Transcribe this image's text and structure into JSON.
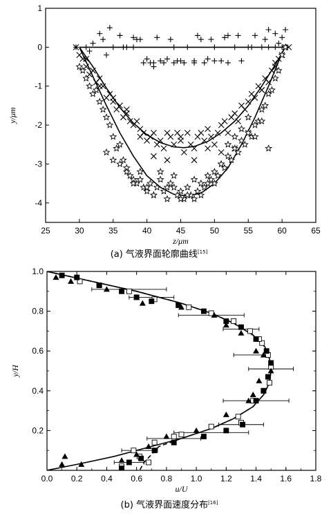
{
  "chart_data": [
    {
      "type": "scatter",
      "caption": "(a) 气液界面轮廓曲线",
      "caption_ref": "[15]",
      "xlabel": "z/μm",
      "ylabel": "y/μm",
      "xlim": [
        25,
        65
      ],
      "ylim": [
        -4.5,
        1
      ],
      "xticks": [
        25,
        30,
        35,
        40,
        45,
        50,
        55,
        60,
        65
      ],
      "yticks": [
        -4,
        -3,
        -2,
        -1,
        0,
        1
      ],
      "series": [
        {
          "marker": "plus",
          "x": [
            29.5,
            31,
            32,
            33,
            34.5,
            35,
            36,
            37,
            38,
            39,
            40,
            40.5,
            41,
            42,
            43,
            43.5,
            44,
            45,
            46,
            47,
            48,
            49,
            50,
            51,
            52,
            53,
            54,
            55,
            56,
            57,
            58,
            59,
            60,
            60.5,
            31.5,
            33.5,
            36.5,
            38.5,
            41.5,
            44.5,
            47.5,
            49.5,
            51.5,
            53.5,
            55.5,
            57.5,
            59.5,
            39.5,
            41,
            42.5,
            44,
            45.5,
            47,
            48.5,
            50,
            52,
            34,
            36,
            38,
            58,
            59,
            60
          ],
          "y": [
            0.0,
            0.0,
            0.1,
            0.35,
            0.5,
            0.0,
            0.3,
            0.0,
            0.0,
            0.2,
            -0.3,
            -0.4,
            -0.5,
            -0.35,
            -0.3,
            0.2,
            0.0,
            -0.35,
            0.0,
            -0.35,
            0.2,
            -0.3,
            0.0,
            -0.35,
            0.3,
            0.0,
            -0.35,
            0.0,
            0.3,
            0.0,
            0.45,
            0.35,
            0.0,
            0.45,
            -0.1,
            0.2,
            0.0,
            0.2,
            0.25,
            -0.35,
            0.3,
            0.2,
            0.25,
            0.3,
            0.0,
            0.2,
            0.1,
            -0.4,
            -0.4,
            -0.4,
            -0.4,
            -0.4,
            -0.4,
            -0.4,
            -0.35,
            -0.4,
            -0.2,
            0.3,
            0.25,
            0.0,
            0.0,
            0.25
          ]
        },
        {
          "marker": "cross",
          "x": [
            29.5,
            30,
            30.5,
            31,
            31.5,
            32,
            32.5,
            33,
            33.5,
            34,
            34.5,
            35,
            35.5,
            36,
            36.5,
            37,
            37.5,
            38,
            38.5,
            39,
            39.5,
            40,
            40.5,
            41,
            41.5,
            42,
            42.5,
            43,
            43.5,
            44,
            44.5,
            45,
            45.5,
            46,
            46.5,
            47,
            47.5,
            48,
            48.5,
            49,
            49.5,
            50,
            50.5,
            51,
            51.5,
            52,
            52.5,
            53,
            53.5,
            54,
            54.5,
            55,
            55.5,
            56,
            56.5,
            57,
            57.5,
            58,
            58.5,
            59,
            59.5,
            60,
            60.5,
            61,
            31,
            33,
            35,
            37,
            39,
            41,
            43,
            45,
            47,
            49,
            51,
            53,
            55,
            57,
            59
          ],
          "y": [
            0.0,
            -0.2,
            -0.3,
            -0.5,
            -0.7,
            -0.6,
            -0.9,
            -1.0,
            -1.0,
            -1.3,
            -1.2,
            -1.4,
            -1.6,
            -1.5,
            -1.8,
            -1.7,
            -1.9,
            -2.0,
            -1.9,
            -2.1,
            -2.2,
            -2.4,
            -2.3,
            -2.2,
            -2.5,
            -2.4,
            -2.6,
            -2.2,
            -2.3,
            -2.5,
            -2.2,
            -2.3,
            -2.7,
            -2.2,
            -2.5,
            -2.6,
            -2.3,
            -2.2,
            -2.4,
            -2.1,
            -2.3,
            -2.5,
            -2.2,
            -2.0,
            -1.9,
            -2.2,
            -1.8,
            -1.7,
            -1.9,
            -1.5,
            -1.6,
            -1.4,
            -1.2,
            -1.3,
            -1.0,
            -1.1,
            -0.8,
            -0.9,
            -0.6,
            -0.5,
            -0.3,
            -0.2,
            0.0,
            0.0,
            -0.3,
            -0.8,
            -1.3,
            -1.6,
            -2.3,
            -2.8,
            -2.9,
            -2.4,
            -2.9,
            -2.6,
            -2.7,
            -2.6,
            -2.2,
            -1.1,
            -0.4
          ]
        },
        {
          "marker": "star",
          "x": [
            30,
            30.5,
            31,
            31.5,
            32,
            32.5,
            33,
            33.5,
            34,
            34.5,
            35,
            35.5,
            36,
            36.5,
            37,
            37.5,
            38,
            38.5,
            39,
            39.5,
            40,
            40.5,
            41,
            41.5,
            42,
            42.5,
            43,
            43.5,
            44,
            44.5,
            45,
            45.5,
            46,
            46.5,
            47,
            47.5,
            48,
            48.5,
            49,
            49.5,
            50,
            50.5,
            51,
            51.5,
            52,
            52.5,
            53,
            53.5,
            54,
            54.5,
            55,
            55.5,
            56,
            56.5,
            57,
            57.5,
            58,
            58.5,
            59,
            59.5,
            60,
            60.5,
            34,
            35,
            36,
            37,
            38,
            39,
            40,
            41,
            42,
            43,
            44,
            45,
            46,
            47,
            48,
            49,
            50,
            51,
            52,
            53,
            54,
            55,
            56,
            57,
            58
          ],
          "y": [
            -0.5,
            -0.6,
            -0.8,
            -1.0,
            -1.2,
            -1.1,
            -1.4,
            -1.6,
            -1.8,
            -2.0,
            -2.3,
            -2.6,
            -2.5,
            -2.9,
            -3.1,
            -3.3,
            -3.4,
            -3.5,
            -3.2,
            -3.6,
            -3.7,
            -3.5,
            -3.8,
            -3.6,
            -3.4,
            -3.7,
            -3.9,
            -3.5,
            -3.6,
            -3.8,
            -3.7,
            -3.9,
            -3.6,
            -3.8,
            -3.4,
            -3.7,
            -3.5,
            -3.6,
            -3.3,
            -3.4,
            -3.2,
            -3.3,
            -3.0,
            -3.1,
            -2.8,
            -2.9,
            -2.6,
            -2.7,
            -2.4,
            -2.5,
            -2.2,
            -2.3,
            -2.0,
            -1.9,
            -1.6,
            -1.5,
            -1.2,
            -1.1,
            -0.8,
            -0.6,
            -0.2,
            0.0,
            -2.7,
            -2.9,
            -3.0,
            -3.2,
            -3.5,
            -3.4,
            -3.6,
            -3.8,
            -3.2,
            -3.6,
            -3.3,
            -3.9,
            -3.8,
            -3.9,
            -3.8,
            -3.5,
            -3.5,
            -3.0,
            -2.5,
            -2.3,
            -2.1,
            -1.8,
            -2.3,
            -1.9,
            -2.6
          ]
        }
      ],
      "lines": [
        {
          "style": "solid",
          "x": [
            30,
            61
          ],
          "y": [
            0,
            0
          ]
        },
        {
          "style": "solid",
          "x": [
            30,
            32,
            34,
            36,
            38,
            40,
            42,
            44,
            45.5,
            47,
            49,
            51,
            53,
            55,
            57,
            59,
            60.5
          ],
          "y": [
            0.0,
            -0.5,
            -1.05,
            -1.55,
            -1.95,
            -2.25,
            -2.45,
            -2.56,
            -2.58,
            -2.55,
            -2.42,
            -2.2,
            -1.9,
            -1.5,
            -1.0,
            -0.45,
            0.0
          ]
        },
        {
          "style": "solid",
          "x": [
            30,
            32,
            34,
            36,
            38,
            40,
            42,
            44,
            46,
            48,
            50,
            52,
            54,
            56,
            58,
            60
          ],
          "y": [
            0.0,
            -0.75,
            -1.5,
            -2.2,
            -2.8,
            -3.3,
            -3.6,
            -3.78,
            -3.82,
            -3.75,
            -3.5,
            -3.1,
            -2.5,
            -1.8,
            -1.0,
            -0.15
          ]
        }
      ]
    },
    {
      "type": "scatter",
      "caption": "(b) 气液界面速度分布",
      "caption_ref": "[16]",
      "xlabel": "u/U",
      "ylabel": "y/H",
      "xlim": [
        0,
        1.8
      ],
      "ylim": [
        0,
        1
      ],
      "xticks": [
        "0.0",
        "0.2",
        "0.4",
        "0.6",
        "0.8",
        "1.0",
        "1.2",
        "1.4",
        "1.6",
        "1.8"
      ],
      "yticks": [
        "0.2",
        "0.4",
        "0.6",
        "0.8",
        "1.0"
      ],
      "series": [
        {
          "marker": "square-open",
          "x": [
            0.22,
            0.35,
            0.55,
            0.72,
            0.95,
            1.1,
            1.25,
            1.36,
            1.44,
            1.48,
            1.5,
            1.49,
            1.45,
            1.38,
            1.28,
            1.1,
            0.9,
            0.72,
            0.58,
            0.62,
            0.68,
            0.5,
            0.85,
            1.3,
            1.42
          ],
          "y": [
            0.95,
            0.93,
            0.9,
            0.86,
            0.82,
            0.79,
            0.75,
            0.7,
            0.64,
            0.58,
            0.52,
            0.44,
            0.4,
            0.35,
            0.27,
            0.22,
            0.18,
            0.14,
            0.1,
            0.07,
            0.04,
            0.02,
            0.17,
            0.24,
            0.66
          ]
        },
        {
          "marker": "square-filled",
          "x": [
            0.1,
            0.2,
            0.35,
            0.5,
            0.6,
            0.7,
            0.88,
            1.05,
            1.2,
            1.3,
            1.4,
            1.47,
            1.5,
            1.48,
            1.45,
            1.4,
            1.31,
            1.2,
            1.05,
            0.85,
            0.72,
            0.63,
            0.55,
            0.5
          ],
          "y": [
            0.98,
            0.97,
            0.93,
            0.9,
            0.87,
            0.85,
            0.83,
            0.8,
            0.75,
            0.72,
            0.66,
            0.6,
            0.54,
            0.47,
            0.4,
            0.35,
            0.23,
            0.2,
            0.17,
            0.14,
            0.1,
            0.06,
            0.04,
            0.01
          ]
        },
        {
          "marker": "triangle",
          "x": [
            0.06,
            0.16,
            0.4,
            0.6,
            0.64,
            0.9,
            1.12,
            1.2,
            1.3,
            1.4,
            1.45,
            1.5,
            1.42,
            1.38,
            1.35,
            1.2,
            1.0,
            0.8,
            0.68,
            0.6,
            0.5,
            0.23,
            0.1,
            0.12
          ],
          "y": [
            0.97,
            0.95,
            0.91,
            0.87,
            0.84,
            0.82,
            0.78,
            0.73,
            0.69,
            0.6,
            0.58,
            0.5,
            0.45,
            0.38,
            0.35,
            0.28,
            0.2,
            0.17,
            0.12,
            0.08,
            0.05,
            0.03,
            0.03,
            0.07
          ]
        }
      ],
      "errorbars": [
        {
          "x": 0.55,
          "y": 0.91,
          "dx": 0.25
        },
        {
          "x": 0.7,
          "y": 0.87,
          "dx": 0.15
        },
        {
          "x": 1.1,
          "y": 0.78,
          "dx": 0.22
        },
        {
          "x": 1.3,
          "y": 0.71,
          "dx": 0.12
        },
        {
          "x": 1.35,
          "y": 0.58,
          "dx": 0.1
        },
        {
          "x": 1.5,
          "y": 0.51,
          "dx": 0.15
        },
        {
          "x": 1.4,
          "y": 0.35,
          "dx": 0.22
        },
        {
          "x": 1.3,
          "y": 0.23,
          "dx": 0.15
        },
        {
          "x": 1.1,
          "y": 0.19,
          "dx": 0.25
        },
        {
          "x": 0.85,
          "y": 0.16,
          "dx": 0.18
        },
        {
          "x": 0.62,
          "y": 0.1,
          "dx": 0.12
        },
        {
          "x": 0.55,
          "y": 0.04,
          "dx": 0.1
        }
      ],
      "lines": [
        {
          "style": "solid",
          "x": [
            0.0,
            0.3,
            0.6,
            0.9,
            1.1,
            1.25,
            1.38,
            1.46,
            1.49,
            1.5,
            1.49,
            1.45,
            1.38,
            1.25,
            1.1,
            0.9,
            0.7,
            0.45,
            0.2,
            0.0
          ],
          "y": [
            1.0,
            0.95,
            0.9,
            0.84,
            0.79,
            0.74,
            0.68,
            0.62,
            0.56,
            0.5,
            0.44,
            0.38,
            0.32,
            0.26,
            0.21,
            0.16,
            0.12,
            0.07,
            0.03,
            0.0
          ]
        },
        {
          "style": "dashed",
          "x": [
            0.0,
            0.3,
            0.6,
            0.9,
            1.1,
            1.25,
            1.38,
            1.46,
            1.49,
            1.5,
            1.49,
            1.45,
            1.38,
            1.25,
            1.1,
            0.9,
            0.75,
            0.7,
            0.65,
            0.62
          ],
          "y": [
            1.0,
            0.95,
            0.9,
            0.84,
            0.79,
            0.74,
            0.68,
            0.62,
            0.56,
            0.5,
            0.44,
            0.38,
            0.32,
            0.26,
            0.21,
            0.16,
            0.12,
            0.08,
            0.04,
            0.0
          ]
        }
      ]
    }
  ]
}
